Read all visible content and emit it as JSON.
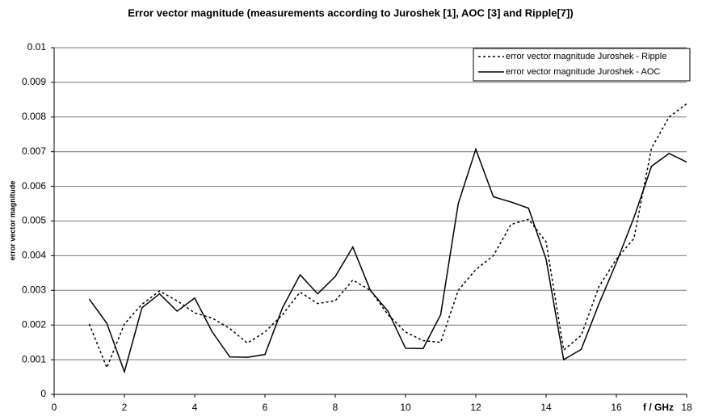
{
  "chart_data": {
    "type": "line",
    "title": "Error vector magnitude (measurements according to Juroshek [1], AOC [3] and Ripple[7])",
    "y_label": "error vector magnitude",
    "x_label": "f / GHz",
    "x": [
      1,
      1.5,
      2,
      2.5,
      3,
      3.5,
      4,
      4.5,
      5,
      5.5,
      6,
      6.5,
      7,
      7.5,
      8,
      8.5,
      9,
      9.5,
      10,
      10.5,
      11,
      11.5,
      12,
      12.5,
      13,
      13.5,
      14,
      14.5,
      15,
      15.5,
      16,
      16.5,
      17,
      17.5,
      18
    ],
    "series": [
      {
        "name": "error vector magnitude  Juroshek - Ripple",
        "color": "#000000",
        "linestyle": "dotted",
        "values": [
          0.00203,
          0.00077,
          0.00203,
          0.0026,
          0.00298,
          0.0027,
          0.00235,
          0.0022,
          0.0019,
          0.00148,
          0.0018,
          0.0023,
          0.00295,
          0.00262,
          0.0027,
          0.0033,
          0.003,
          0.0023,
          0.0018,
          0.00155,
          0.0015,
          0.003,
          0.0036,
          0.004,
          0.0049,
          0.00505,
          0.0044,
          0.00128,
          0.0017,
          0.0031,
          0.0039,
          0.0045,
          0.0071,
          0.008,
          0.00838
        ]
      },
      {
        "name": "error vector magnitude  Juroshek - AOC",
        "color": "#000000",
        "linestyle": "solid",
        "values": [
          0.00275,
          0.00205,
          0.00065,
          0.0025,
          0.0029,
          0.0024,
          0.00278,
          0.0018,
          0.00108,
          0.00107,
          0.00115,
          0.0025,
          0.00345,
          0.0029,
          0.0034,
          0.00425,
          0.003,
          0.0024,
          0.00133,
          0.00132,
          0.0023,
          0.0055,
          0.00707,
          0.0057,
          0.00555,
          0.00537,
          0.0039,
          0.001,
          0.0013,
          0.0026,
          0.0038,
          0.0051,
          0.00658,
          0.00695,
          0.0067
        ]
      }
    ],
    "xlim": [
      0,
      18
    ],
    "xticks": [
      0,
      2,
      4,
      6,
      8,
      10,
      12,
      14,
      16,
      18
    ],
    "ylim": [
      0,
      0.01
    ],
    "yticks": [
      0,
      0.001,
      0.002,
      0.003,
      0.004,
      0.005,
      0.006,
      0.007,
      0.008,
      0.009,
      0.01
    ],
    "grid": true,
    "legend": "top-right"
  }
}
